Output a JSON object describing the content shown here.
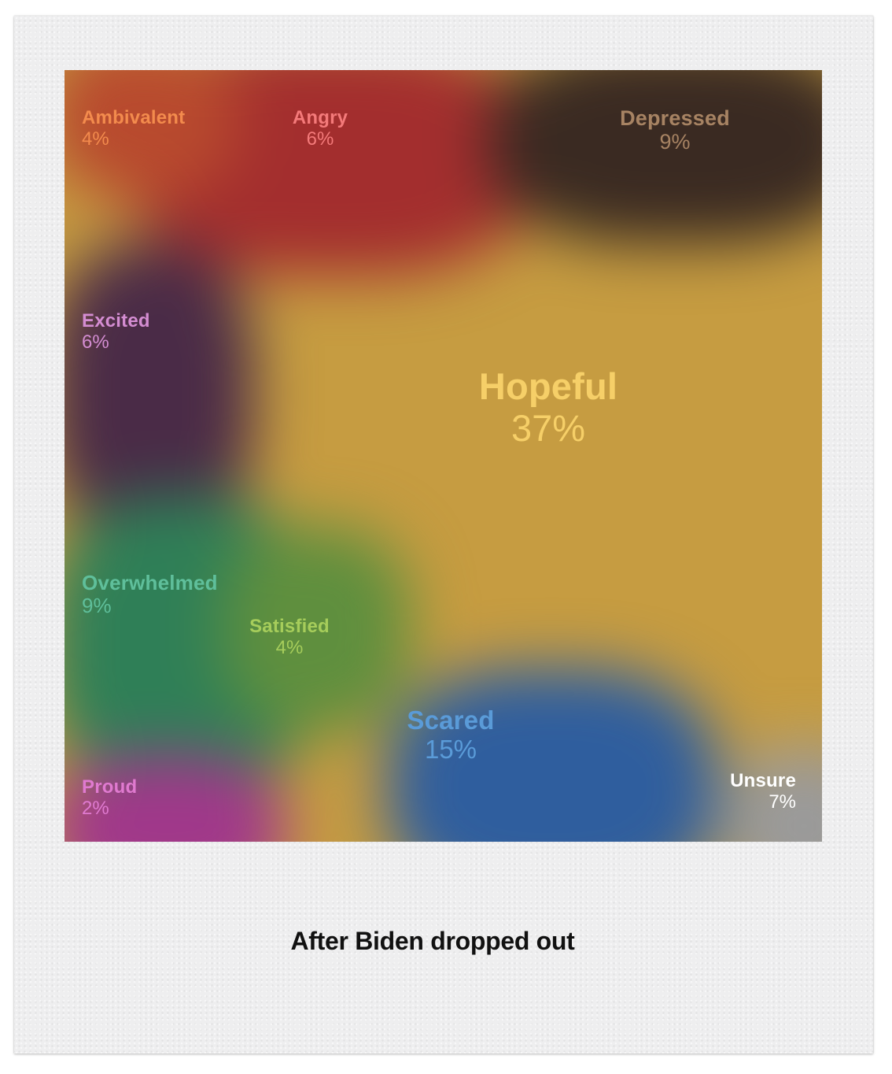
{
  "caption": "After Biden dropped out",
  "chart_data": {
    "type": "area",
    "title": "After Biden dropped out",
    "unit": "%",
    "categories": [
      "Hopeful",
      "Scared",
      "Depressed",
      "Overwhelmed",
      "Unsure",
      "Angry",
      "Excited",
      "Ambivalent",
      "Satisfied",
      "Proud"
    ],
    "values": [
      37,
      15,
      9,
      9,
      7,
      6,
      6,
      4,
      4,
      2
    ],
    "display": {
      "Hopeful": "37%",
      "Scared": "15%",
      "Depressed": "9%",
      "Overwhelmed": "9%",
      "Unsure": "7%",
      "Angry": "6%",
      "Excited": "6%",
      "Ambivalent": "4%",
      "Satisfied": "4%",
      "Proud": "2%"
    },
    "colors": {
      "Hopeful": "#c69c41",
      "Scared": "#2f5e9e",
      "Depressed": "#3a2a22",
      "Overwhelmed": "#2f7f57",
      "Unsure": "#9a9a9a",
      "Angry": "#a32e2e",
      "Excited": "#4a2b47",
      "Ambivalent": "#b84a2e",
      "Satisfied": "#5f8f3e",
      "Proud": "#a0388a"
    },
    "label_colors": {
      "Hopeful": "#f6cf68",
      "Scared": "#5a9bd8",
      "Depressed": "#a78363",
      "Overwhelmed": "#5fbf9b",
      "Unsure": "#ffffff",
      "Angry": "#f47a7a",
      "Excited": "#d48dd2",
      "Ambivalent": "#f38b4d",
      "Satisfied": "#a6cd5b",
      "Proud": "#e07ad0"
    }
  }
}
